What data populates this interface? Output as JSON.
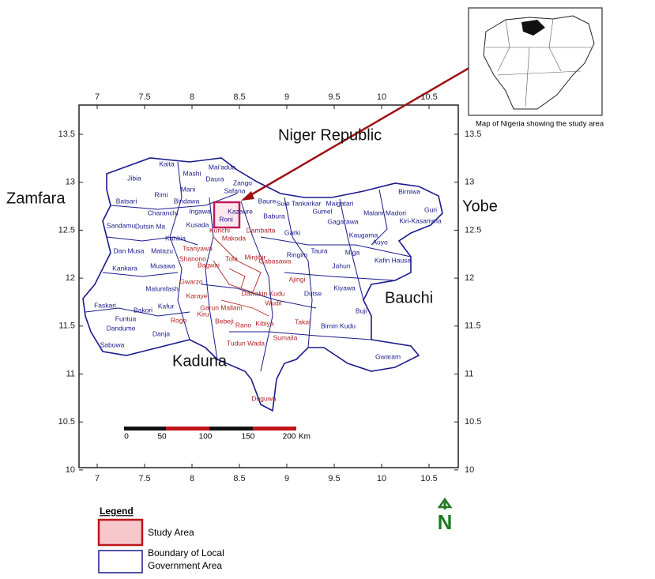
{
  "axes": {
    "xticks": [
      7,
      7.5,
      8,
      8.5,
      9,
      9.5,
      10,
      10.5
    ],
    "yticks": [
      10,
      10.5,
      11,
      11.5,
      12,
      12.5,
      13,
      13.5
    ]
  },
  "region_labels": [
    "Niger Republic",
    "Zamfara",
    "Kaduna",
    "Bauchi",
    "Yobe"
  ],
  "blue_labels": [
    "Kaita",
    "Mashi",
    "Mai'adua",
    "Daura",
    "Zango",
    "Jibia",
    "Rimi",
    "Safana",
    "Batsari",
    "Mani",
    "Bindawa",
    "Ingawa",
    "Charanchi",
    "Kusada",
    "Sandamu",
    "Dutsin Ma",
    "Kankia",
    "Dan Musa",
    "Matazu",
    "Kankara",
    "Musawa",
    "Malumfashi",
    "Faskari",
    "Bakori",
    "Kafur",
    "Funtua",
    "Dandume",
    "Danja",
    "Sabuwa",
    "Roni",
    "Kazaure",
    "Baure",
    "Babura",
    "Sule Tankarkar",
    "Maigatari",
    "Gumel",
    "Gagarawa",
    "Garki",
    "Birniwa",
    "Malam Madori",
    "Guri",
    "Kiri-Kasamma",
    "Kaugama",
    "Auyo",
    "Taura",
    "Miga",
    "Ringim",
    "Jahun",
    "Kafin Hausa",
    "Dutse",
    "Kiyawa",
    "Buji",
    "Birnin Kudu",
    "Gwaram"
  ],
  "red_labels": [
    "Dambatta",
    "Makoda",
    "Kunchi",
    "Tsanyawa",
    "Shanono",
    "Bagwai",
    "Tofa",
    "Minjibir",
    "Gabasawa",
    "Ajingi",
    "Gwarzo",
    "Karaye",
    "Garun Mallam",
    "Kiru",
    "Rogo",
    "Bebeji",
    "Rano",
    "Kibiya",
    "Wudil",
    "Dawakin Kudu",
    "Takai",
    "Sumaila",
    "Tudun Wada",
    "Doguwa"
  ],
  "scale_bar": {
    "labels": [
      0,
      50,
      100,
      150,
      200
    ],
    "unit": "Km"
  },
  "inset_caption": "Map of Nigeria showing the study area",
  "legend": {
    "title": "Legend",
    "items": [
      "Study Area",
      [
        "Boundary of Local",
        "Government Area"
      ]
    ]
  },
  "north": "N"
}
